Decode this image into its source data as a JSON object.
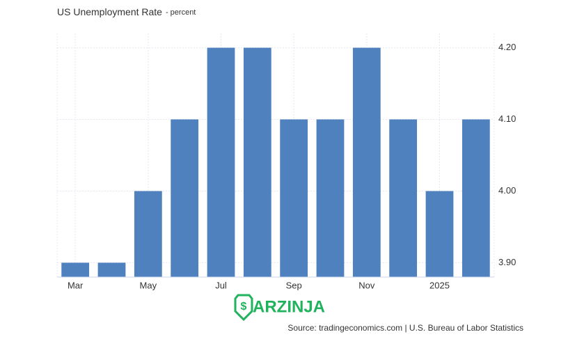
{
  "chart_data": {
    "type": "bar",
    "title": "US Unemployment Rate",
    "subtitle": "- percent",
    "categories": [
      "Mar",
      null,
      "May",
      null,
      "Jul",
      null,
      "Sep",
      null,
      "Nov",
      null,
      "2025",
      null
    ],
    "values": [
      3.9,
      3.9,
      4.0,
      4.1,
      4.2,
      4.2,
      4.1,
      4.1,
      4.2,
      4.1,
      4.0,
      4.1
    ],
    "color": "#4e81bd",
    "ylim": [
      3.88,
      4.22
    ],
    "yticks": [
      {
        "value": 3.9,
        "label": "3.90"
      },
      {
        "value": 4.0,
        "label": "4.00"
      },
      {
        "value": 4.1,
        "label": "4.10"
      },
      {
        "value": 4.2,
        "label": "4.20"
      }
    ],
    "grid": true,
    "source": "Source: tradingeconomics.com | U.S. Bureau of Labor Statistics",
    "watermark": "ARZINJA"
  }
}
